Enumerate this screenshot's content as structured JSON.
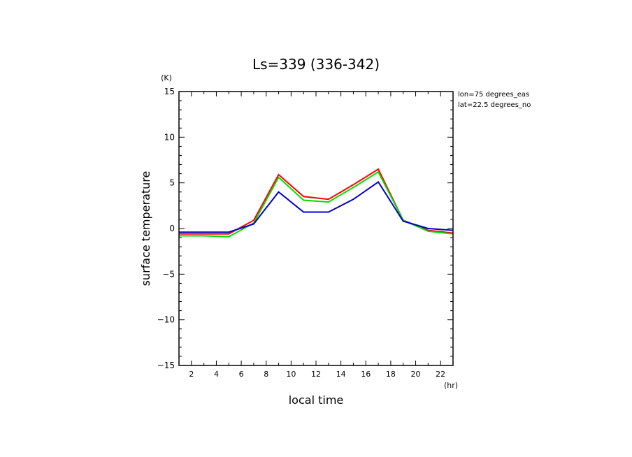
{
  "chart_data": {
    "type": "line",
    "title": "Ls=339 (336-342)",
    "xlabel": "local time",
    "ylabel": "surface temperature",
    "x_unit": "(hr)",
    "y_unit": "(K)",
    "xlim": [
      1,
      23
    ],
    "ylim": [
      -15,
      15
    ],
    "x_ticks": [
      2,
      4,
      6,
      8,
      10,
      12,
      14,
      16,
      18,
      20,
      22
    ],
    "y_ticks": [
      -15,
      -10,
      -5,
      0,
      5,
      10,
      15
    ],
    "annotations": [
      "lon=75 degrees_eas",
      "lat=22.5 degrees_no"
    ],
    "x": [
      1,
      3,
      5,
      7,
      9,
      11,
      13,
      15,
      17,
      19,
      21,
      23
    ],
    "series": [
      {
        "color": "#ff0000",
        "values": [
          -0.6,
          -0.6,
          -0.6,
          0.9,
          5.9,
          3.5,
          3.2,
          4.8,
          6.5,
          0.9,
          -0.2,
          -0.5
        ]
      },
      {
        "color": "#00dd00",
        "values": [
          -0.8,
          -0.8,
          -0.9,
          0.6,
          5.6,
          3.1,
          2.9,
          4.5,
          6.2,
          0.9,
          -0.3,
          -0.6
        ]
      },
      {
        "color": "#0000cc",
        "values": [
          -0.4,
          -0.4,
          -0.4,
          0.5,
          4.0,
          1.8,
          1.8,
          3.2,
          5.1,
          0.8,
          0.0,
          -0.2
        ]
      }
    ]
  }
}
